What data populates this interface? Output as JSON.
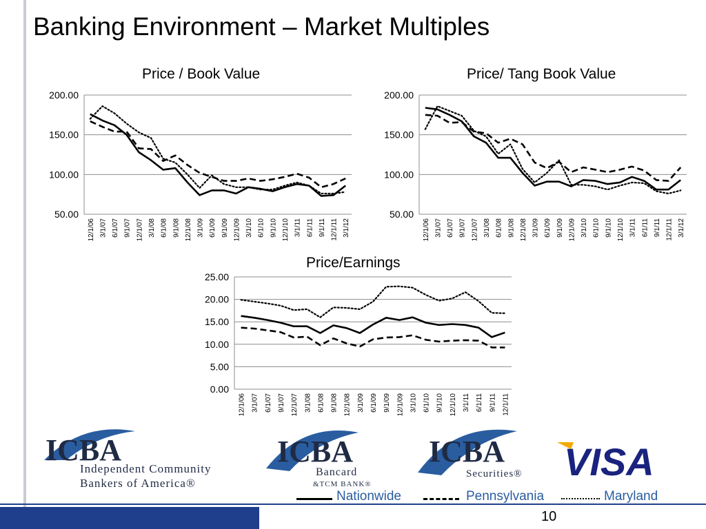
{
  "slide": {
    "title": "Banking Environment – Market Multiples",
    "page_number": "10"
  },
  "colors": {
    "brand_blue": "#1f3f8c",
    "legend_text": "#2a5d9f",
    "visa_blue": "#1a237e",
    "visa_gold": "#f2a900"
  },
  "logos": [
    {
      "name": "icba-logo",
      "mark": "ICBA",
      "lines": [
        "Independent Community",
        "Bankers of America®"
      ]
    },
    {
      "name": "icba-bancard-logo",
      "mark": "ICBA",
      "lines": [
        "Bancard",
        "&TCM BANK®"
      ]
    },
    {
      "name": "icba-securities-logo",
      "mark": "ICBA",
      "lines": [
        "Securities®"
      ]
    },
    {
      "name": "visa-logo",
      "mark": "VISA",
      "lines": []
    }
  ],
  "legend": {
    "items": [
      {
        "label": "Nationwide",
        "style": "solid"
      },
      {
        "label": "Pennsylvania",
        "style": "dashed"
      },
      {
        "label": "Maryland",
        "style": "dotted"
      }
    ]
  },
  "chart_data": [
    {
      "type": "line",
      "title": "Price / Book Value",
      "categories": [
        "12/1/06",
        "3/1/07",
        "6/1/07",
        "9/1/07",
        "12/1/07",
        "3/1/08",
        "6/1/08",
        "9/1/08",
        "12/1/08",
        "3/1/09",
        "6/1/09",
        "9/1/09",
        "12/1/09",
        "3/1/10",
        "6/1/10",
        "9/1/10",
        "12/1/10",
        "3/1/11",
        "6/1/11",
        "9/1/11",
        "12/1/11",
        "3/1/12"
      ],
      "ylim": [
        50,
        200
      ],
      "yticks": [
        "50.00",
        "100.00",
        "150.00",
        "200.00"
      ],
      "series": [
        {
          "name": "Nationwide",
          "style": "solid",
          "values": [
            176,
            168,
            162,
            150,
            128,
            118,
            106,
            108,
            90,
            74,
            80,
            80,
            76,
            84,
            82,
            79,
            84,
            88,
            86,
            73,
            74,
            86
          ]
        },
        {
          "name": "Pennsylvania",
          "style": "dashed",
          "values": [
            167,
            160,
            154,
            154,
            133,
            132,
            117,
            124,
            112,
            102,
            97,
            92,
            92,
            95,
            92,
            94,
            97,
            101,
            96,
            84,
            88,
            95
          ]
        },
        {
          "name": "Maryland",
          "style": "dotted",
          "values": [
            170,
            186,
            177,
            164,
            153,
            146,
            120,
            115,
            100,
            83,
            99,
            88,
            84,
            84,
            81,
            81,
            86,
            90,
            86,
            76,
            76,
            78
          ]
        }
      ]
    },
    {
      "type": "line",
      "title": "Price/ Tang Book Value",
      "categories": [
        "12/1/06",
        "3/1/07",
        "6/1/07",
        "9/1/07",
        "12/1/07",
        "3/1/08",
        "6/1/08",
        "9/1/08",
        "12/1/08",
        "3/1/09",
        "6/1/09",
        "9/1/09",
        "12/1/09",
        "3/1/10",
        "6/1/10",
        "9/1/10",
        "12/1/10",
        "3/1/11",
        "6/1/11",
        "9/1/11",
        "12/1/11",
        "3/1/12"
      ],
      "ylim": [
        50,
        200
      ],
      "yticks": [
        "50.00",
        "100.00",
        "150.00",
        "200.00"
      ],
      "series": [
        {
          "name": "Nationwide",
          "style": "solid",
          "values": [
            184,
            182,
            175,
            167,
            148,
            140,
            121,
            121,
            102,
            86,
            91,
            91,
            85,
            93,
            92,
            88,
            90,
            97,
            92,
            81,
            81,
            93
          ]
        },
        {
          "name": "Pennsylvania",
          "style": "dashed",
          "values": [
            175,
            174,
            165,
            166,
            154,
            152,
            140,
            145,
            138,
            115,
            108,
            116,
            103,
            109,
            106,
            103,
            106,
            110,
            105,
            93,
            92,
            109
          ]
        },
        {
          "name": "Maryland",
          "style": "dotted",
          "values": [
            157,
            186,
            180,
            174,
            155,
            148,
            126,
            138,
            107,
            90,
            102,
            118,
            87,
            87,
            85,
            81,
            86,
            90,
            89,
            79,
            76,
            80
          ]
        }
      ]
    },
    {
      "type": "line",
      "title": "Price/Earnings",
      "categories": [
        "12/1/06",
        "3/1/07",
        "6/1/07",
        "9/1/07",
        "12/1/07",
        "3/1/08",
        "6/1/08",
        "9/1/08",
        "12/1/08",
        "3/1/09",
        "6/1/09",
        "9/1/09",
        "12/1/09",
        "3/1/10",
        "6/1/10",
        "9/1/10",
        "12/1/10",
        "3/1/11",
        "6/1/11",
        "9/1/11",
        "12/1/11"
      ],
      "ylim": [
        0,
        25
      ],
      "yticks": [
        "0.00",
        "5.00",
        "10.00",
        "15.00",
        "20.00",
        "25.00"
      ],
      "series": [
        {
          "name": "Nationwide",
          "style": "solid",
          "values": [
            16.3,
            15.9,
            15.4,
            14.8,
            14.0,
            14.0,
            12.5,
            14.2,
            13.6,
            12.5,
            14.4,
            15.9,
            15.4,
            16.0,
            14.8,
            14.3,
            14.5,
            14.3,
            13.7,
            11.6,
            12.6
          ]
        },
        {
          "name": "Pennsylvania",
          "style": "dashed",
          "values": [
            13.7,
            13.5,
            13.1,
            12.7,
            11.5,
            11.7,
            9.8,
            11.3,
            10.2,
            9.5,
            11.1,
            11.5,
            11.6,
            12.0,
            11.0,
            10.6,
            10.8,
            10.9,
            10.8,
            9.3,
            9.3
          ]
        },
        {
          "name": "Maryland",
          "style": "dotted",
          "values": [
            19.9,
            19.5,
            19.1,
            18.6,
            17.6,
            17.8,
            16.0,
            18.2,
            18.1,
            17.8,
            19.5,
            22.8,
            22.9,
            22.6,
            21.0,
            19.7,
            20.2,
            21.6,
            19.6,
            17.0,
            16.9
          ]
        }
      ]
    }
  ]
}
